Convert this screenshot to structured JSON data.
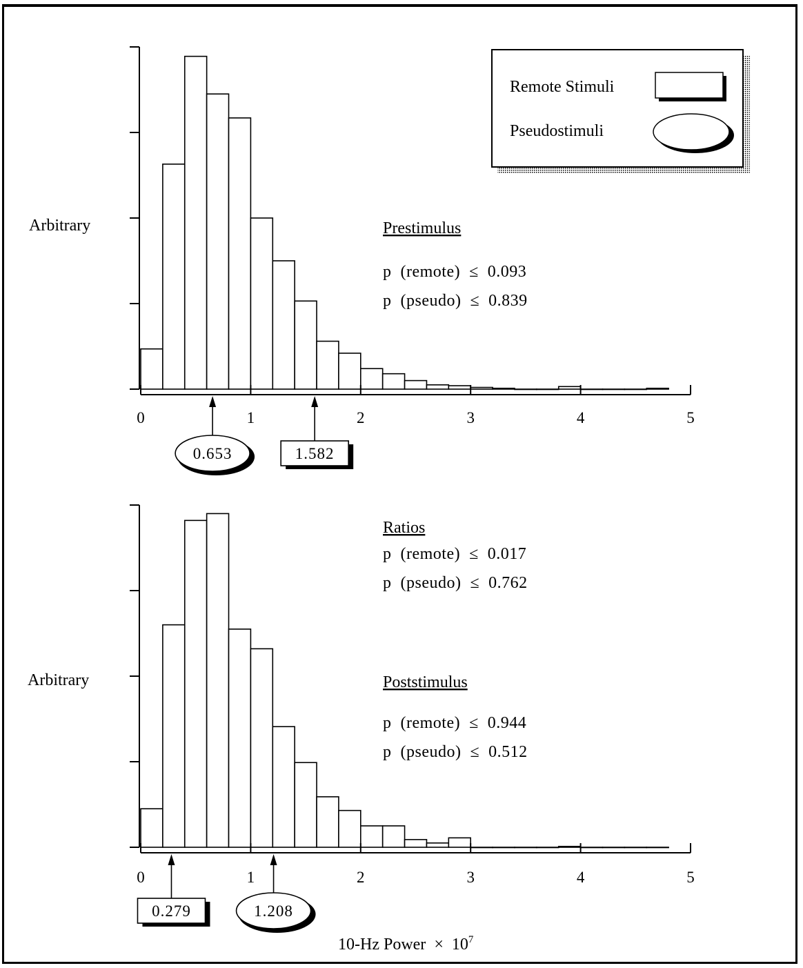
{
  "figure": {
    "xlabel_main": "10-Hz Power",
    "xlabel_times": "×",
    "xlabel_base": "10",
    "xlabel_exp": "7"
  },
  "legend": {
    "remote_label": "Remote  Stimuli",
    "pseudo_label": "Pseudostimuli"
  },
  "annotations": {
    "prestimulus": {
      "heading": "Prestimulus",
      "remote": "p  (remote)  ≤  0.093",
      "pseudo": "p  (pseudo)  ≤  0.839"
    },
    "ratios": {
      "heading": "Ratios",
      "remote": "p  (remote)  ≤  0.017",
      "pseudo": "p  (pseudo)  ≤  0.762"
    },
    "poststimulus": {
      "heading": "Poststimulus",
      "remote": "p  (remote)  ≤  0.944",
      "pseudo": "p  (pseudo)  ≤  0.512"
    }
  },
  "chart_data": [
    {
      "type": "bar",
      "ylabel": "Arbitrary",
      "xlim": [
        0,
        5
      ],
      "ylim": [
        0,
        4
      ],
      "x_ticks": [
        "0",
        "1",
        "2",
        "3",
        "4",
        "5"
      ],
      "bin_width": 0.2,
      "bin_starts": [
        0,
        0.2,
        0.4,
        0.6,
        0.8,
        1.0,
        1.2,
        1.4,
        1.6,
        1.8,
        2.0,
        2.2,
        2.4,
        2.6,
        2.8,
        3.0,
        3.2,
        3.4,
        3.6,
        3.8,
        4.0,
        4.2,
        4.4,
        4.6
      ],
      "values": [
        0.47,
        2.63,
        3.89,
        3.45,
        3.17,
        2.0,
        1.5,
        1.03,
        0.56,
        0.42,
        0.24,
        0.18,
        0.1,
        0.05,
        0.04,
        0.02,
        0.01,
        0.0,
        0.0,
        0.03,
        0.0,
        0.0,
        0.0,
        0.01
      ],
      "markers": [
        {
          "value": 0.653,
          "label": "0.653",
          "shape": "ellipse"
        },
        {
          "value": 1.582,
          "label": "1.582",
          "shape": "rect"
        }
      ]
    },
    {
      "type": "bar",
      "ylabel": "Arbitrary",
      "xlim": [
        0,
        5
      ],
      "ylim": [
        0,
        4
      ],
      "x_ticks": [
        "0",
        "1",
        "2",
        "3",
        "4",
        "5"
      ],
      "bin_width": 0.2,
      "bin_starts": [
        0,
        0.2,
        0.4,
        0.6,
        0.8,
        1.0,
        1.2,
        1.4,
        1.6,
        1.8,
        2.0,
        2.2,
        2.4,
        2.6,
        2.8,
        3.0,
        3.2,
        3.4,
        3.6,
        3.8,
        4.0,
        4.2,
        4.4,
        4.6
      ],
      "values": [
        0.45,
        2.6,
        3.82,
        3.9,
        2.55,
        2.32,
        1.41,
        0.99,
        0.59,
        0.43,
        0.25,
        0.25,
        0.09,
        0.05,
        0.11,
        0.0,
        0.0,
        0.0,
        0.0,
        0.01,
        0.0,
        0.0,
        0.0,
        0.0
      ],
      "markers": [
        {
          "value": 0.279,
          "label": "0.279",
          "shape": "rect"
        },
        {
          "value": 1.208,
          "label": "1.208",
          "shape": "ellipse"
        }
      ]
    }
  ]
}
